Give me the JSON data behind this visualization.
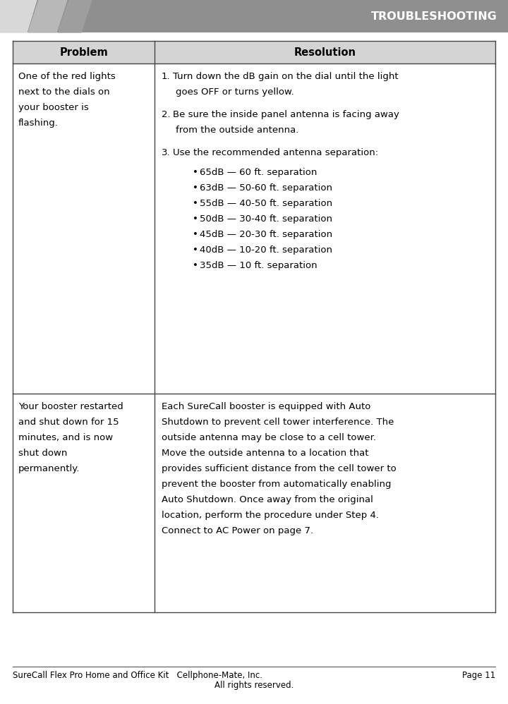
{
  "page_bg": "#ffffff",
  "header_bg": "#8f8f8f",
  "header_text": "TROUBLESHOOTING",
  "header_text_color": "#ffffff",
  "table_header_bg": "#d4d4d4",
  "table_border_color": "#444444",
  "footer_left": "SureCall Flex Pro Home and Office Kit   Cellphone-Mate, Inc.",
  "footer_center": "All rights reserved.",
  "footer_right": "Page 11",
  "col_header_1": "Problem",
  "col_header_2": "Resolution",
  "row1_problem_lines": [
    "One of the red lights",
    "next to the dials on",
    "your booster is",
    "flashing."
  ],
  "row1_bullets": [
    "65dB — 60 ft. separation",
    "63dB — 50-60 ft. separation",
    "55dB — 40-50 ft. separation",
    "50dB — 30-40 ft. separation",
    "45dB — 20-30 ft. separation",
    "40dB — 10-20 ft. separation",
    "35dB — 10 ft. separation"
  ],
  "row2_problem_lines": [
    "Your booster restarted",
    "and shut down for 15",
    "minutes, and is now",
    "shut down",
    "permanently."
  ],
  "res2_lines": [
    "Each SureCall booster is equipped with Auto",
    "Shutdown to prevent cell tower interference. The",
    "outside antenna may be close to a cell tower.",
    "Move the outside antenna to a location that",
    "provides sufficient distance from the cell tower to",
    "prevent the booster from automatically enabling",
    "Auto Shutdown. Once away from the original",
    "location, perform the procedure under Step 4.",
    "Connect to AC Power on page 7."
  ],
  "stripe_colors": [
    "#d8d8d8",
    "#b8b8b8",
    "#9e9e9e"
  ],
  "font_size_body": 9.5,
  "font_size_header_table": 10.5,
  "font_size_page_header": 11.5,
  "font_size_footer": 8.5
}
